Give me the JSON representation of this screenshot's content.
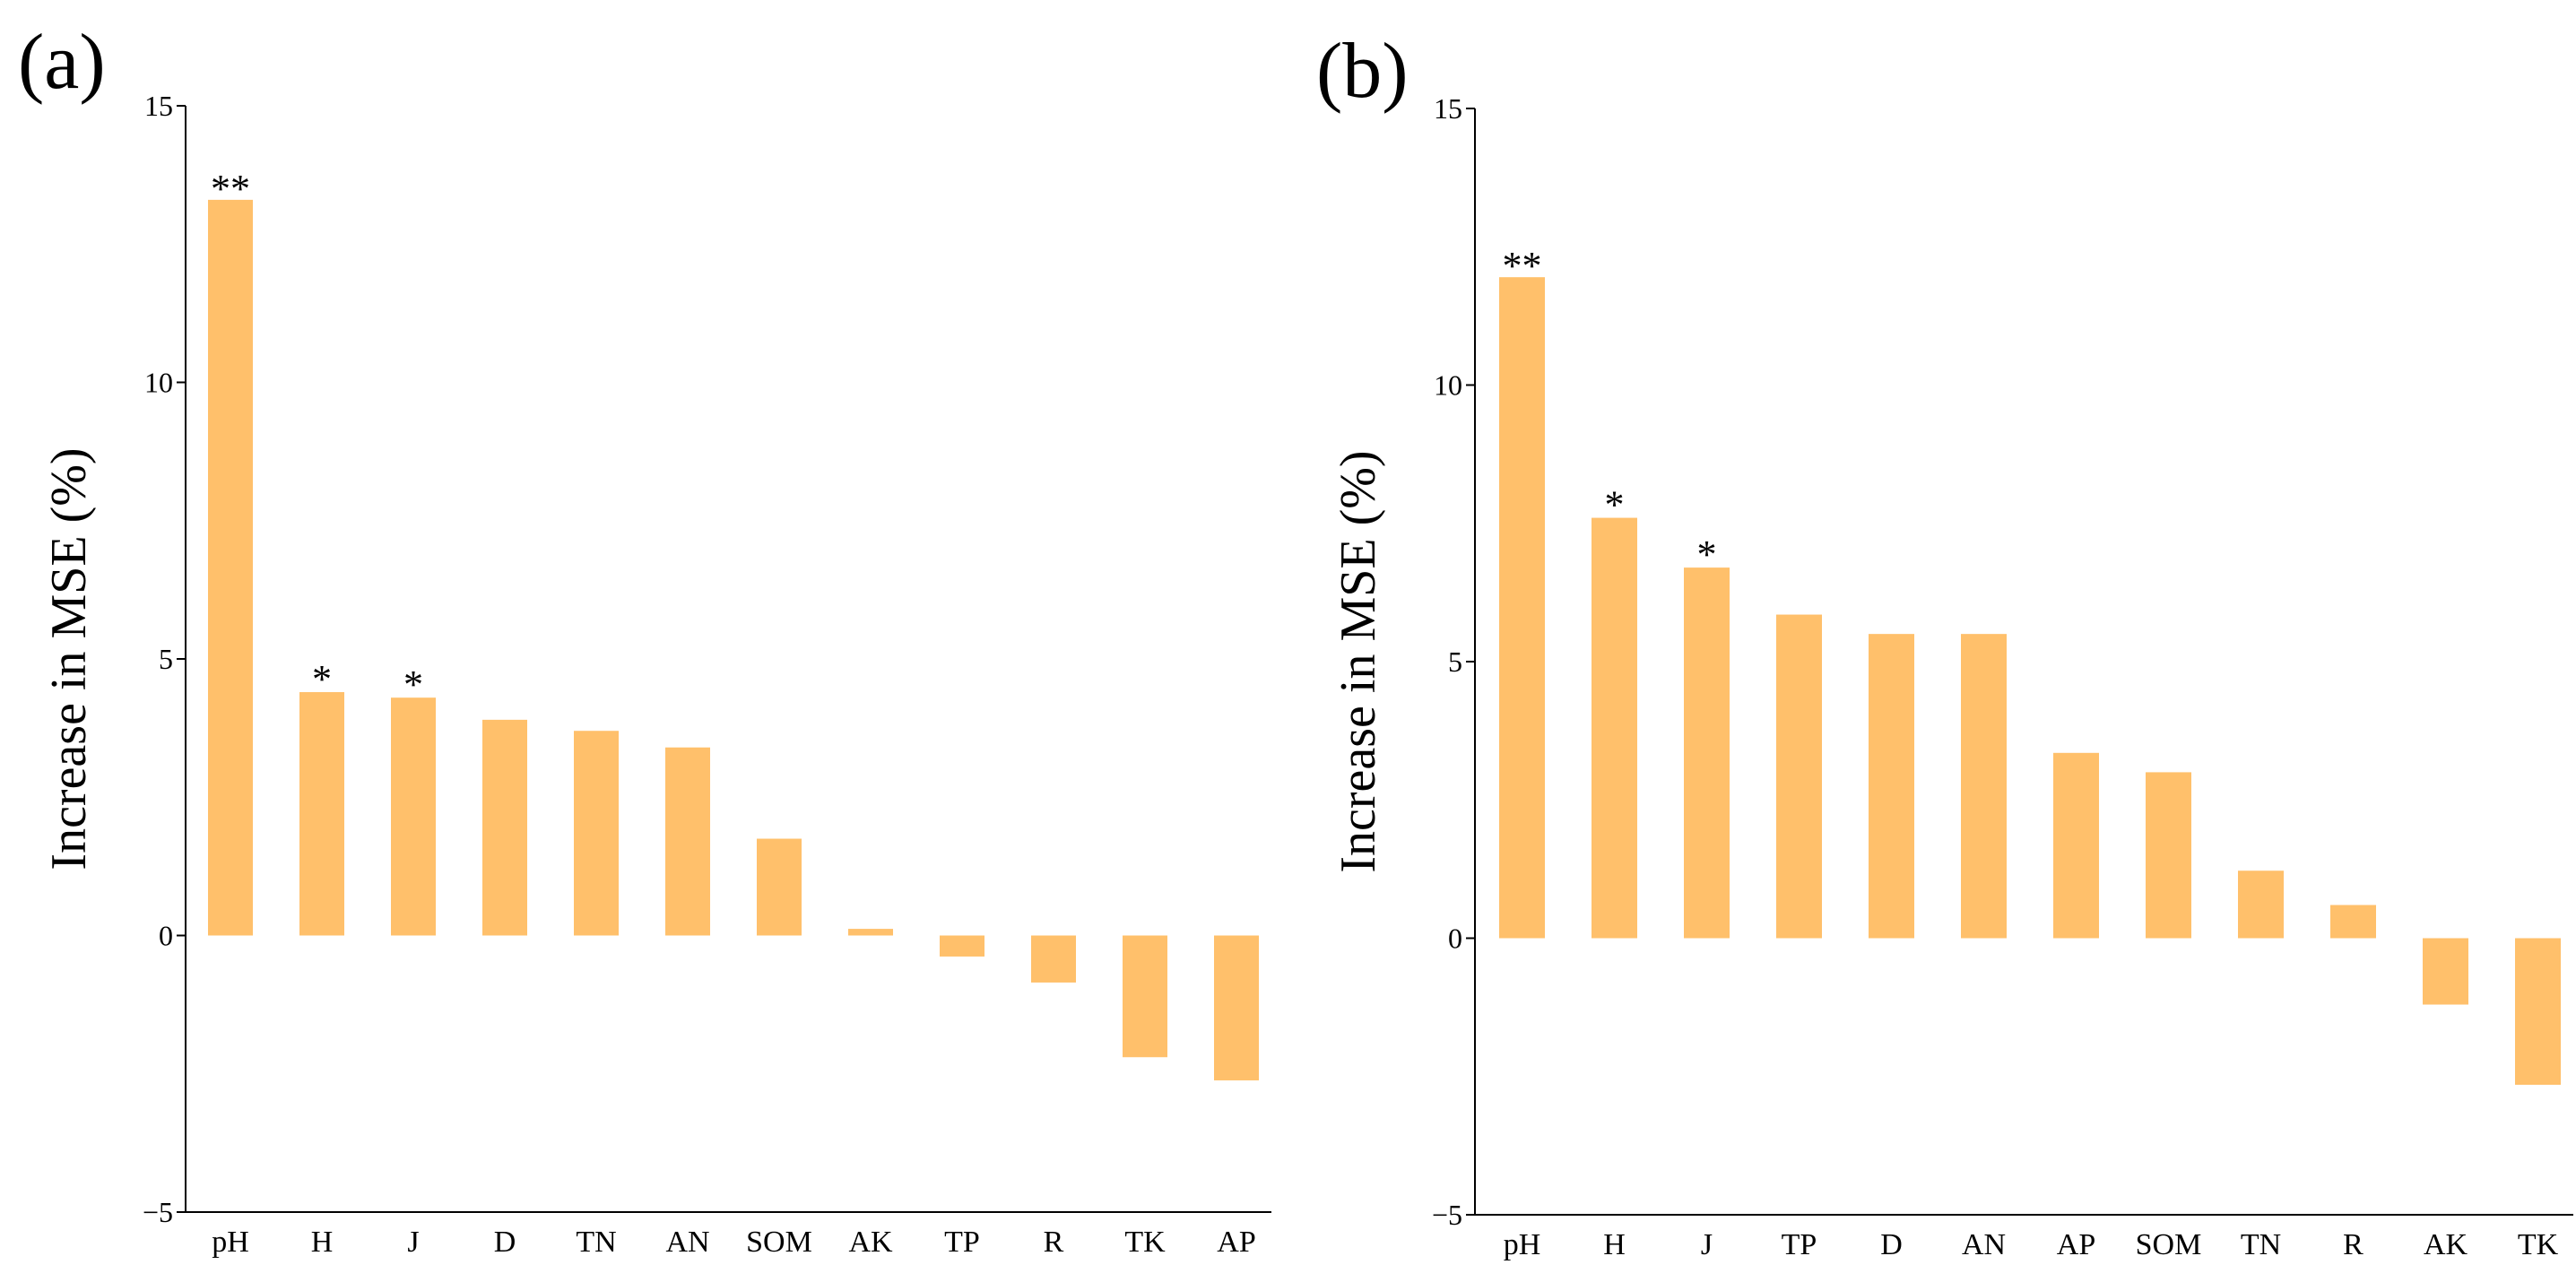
{
  "figure": {
    "style": {
      "bar_color": "#FFC06B",
      "axis_color": "#000000",
      "background": "#FFFFFF"
    }
  },
  "chart_data": [
    {
      "type": "bar",
      "panel_label": "(a)",
      "title": "",
      "xlabel": "",
      "ylabel": "Increase in MSE (%)",
      "ylim": [
        -5,
        15
      ],
      "yticks": [
        -5,
        0,
        5,
        10,
        15
      ],
      "grid": false,
      "categories": [
        "pH",
        "H",
        "J",
        "D",
        "TN",
        "AN",
        "SOM",
        "AK",
        "TP",
        "R",
        "TK",
        "AP"
      ],
      "values": [
        13.3,
        4.4,
        4.3,
        3.9,
        3.7,
        3.4,
        1.75,
        0.12,
        -0.38,
        -0.85,
        -2.2,
        -2.62
      ],
      "significance": [
        "**",
        "*",
        "*",
        "",
        "",
        "",
        "",
        "",
        "",
        "",
        "",
        ""
      ]
    },
    {
      "type": "bar",
      "panel_label": "(b)",
      "title": "",
      "xlabel": "",
      "ylabel": "Increase in MSE (%)",
      "ylim": [
        -5,
        15
      ],
      "yticks": [
        -5,
        0,
        5,
        10,
        15
      ],
      "grid": false,
      "categories": [
        "pH",
        "H",
        "J",
        "TP",
        "D",
        "AN",
        "AP",
        "SOM",
        "TN",
        "R",
        "AK",
        "TK"
      ],
      "values": [
        11.95,
        7.6,
        6.7,
        5.85,
        5.5,
        5.5,
        3.35,
        3.0,
        1.22,
        0.6,
        -1.2,
        -2.65
      ],
      "significance": [
        "**",
        "*",
        "*",
        "",
        "",
        "",
        "",
        "",
        "",
        "",
        "",
        ""
      ]
    }
  ]
}
